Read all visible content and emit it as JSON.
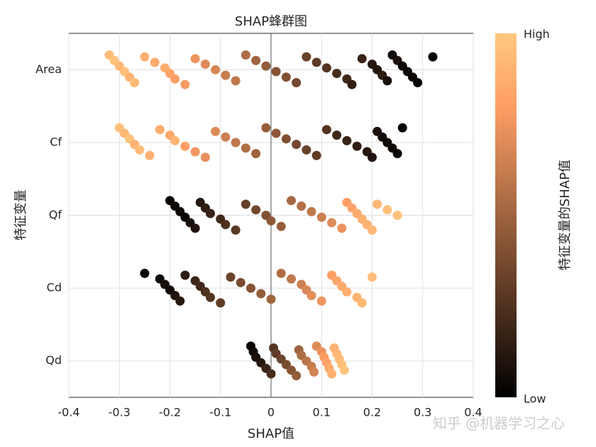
{
  "chart_data": {
    "type": "beeswarm",
    "title": "SHAP蜂群图",
    "x_label": "SHAP值",
    "y_label": "特征变量",
    "colorbar_label": "特征变量的SHAP值",
    "colorbar_high": "High",
    "colorbar_low": "Low",
    "watermark": "知乎 @机器学习之心",
    "categories": [
      "Area",
      "Cf",
      "Qf",
      "Cd",
      "Qd"
    ],
    "xlim": [
      -0.4,
      0.4
    ],
    "xticks": [
      -0.4,
      -0.3,
      -0.2,
      -0.1,
      0,
      0.1,
      0.2,
      0.3,
      0.4
    ],
    "grid": true,
    "shap_values": [
      [
        -0.32,
        -0.31,
        -0.3,
        -0.29,
        -0.28,
        -0.27,
        -0.25,
        -0.23,
        -0.21,
        -0.2,
        -0.19,
        -0.17,
        -0.15,
        -0.13,
        -0.11,
        -0.09,
        -0.07,
        -0.05,
        -0.03,
        -0.01,
        0.01,
        0.03,
        0.05,
        0.07,
        0.09,
        0.11,
        0.13,
        0.15,
        0.16,
        0.18,
        0.2,
        0.21,
        0.22,
        0.23,
        0.24,
        0.25,
        0.26,
        0.27,
        0.28,
        0.29,
        0.32
      ],
      [
        -0.3,
        -0.29,
        -0.28,
        -0.27,
        -0.26,
        -0.24,
        -0.22,
        -0.2,
        -0.19,
        -0.17,
        -0.15,
        -0.13,
        -0.11,
        -0.09,
        -0.07,
        -0.05,
        -0.03,
        -0.01,
        0.01,
        0.03,
        0.05,
        0.07,
        0.09,
        0.11,
        0.13,
        0.15,
        0.17,
        0.19,
        0.2,
        0.21,
        0.22,
        0.23,
        0.24,
        0.25,
        0.26
      ],
      [
        -0.2,
        -0.19,
        -0.18,
        -0.17,
        -0.16,
        -0.15,
        -0.14,
        -0.13,
        -0.12,
        -0.1,
        -0.09,
        -0.07,
        -0.05,
        -0.03,
        -0.01,
        0.0,
        0.02,
        0.04,
        0.06,
        0.08,
        0.1,
        0.12,
        0.14,
        0.15,
        0.16,
        0.17,
        0.18,
        0.19,
        0.2,
        0.21,
        0.23,
        0.25
      ],
      [
        -0.25,
        -0.22,
        -0.21,
        -0.2,
        -0.19,
        -0.18,
        -0.17,
        -0.15,
        -0.14,
        -0.13,
        -0.12,
        -0.1,
        -0.08,
        -0.06,
        -0.04,
        -0.02,
        0.0,
        0.02,
        0.04,
        0.06,
        0.07,
        0.08,
        0.1,
        0.12,
        0.13,
        0.14,
        0.15,
        0.17,
        0.18,
        0.2
      ],
      [
        -0.04,
        -0.035,
        -0.03,
        -0.02,
        -0.01,
        0.0,
        0.005,
        0.01,
        0.02,
        0.03,
        0.04,
        0.05,
        0.055,
        0.06,
        0.07,
        0.08,
        0.085,
        0.09,
        0.1,
        0.105,
        0.11,
        0.115,
        0.12,
        0.125,
        0.13,
        0.135,
        0.14,
        0.145
      ]
    ],
    "feature_values": [
      [
        0.95,
        0.98,
        0.92,
        0.96,
        0.9,
        0.94,
        0.88,
        0.85,
        0.87,
        0.82,
        0.8,
        0.78,
        0.75,
        0.7,
        0.68,
        0.62,
        0.6,
        0.55,
        0.5,
        0.46,
        0.42,
        0.4,
        0.36,
        0.33,
        0.3,
        0.26,
        0.22,
        0.2,
        0.15,
        0.18,
        0.12,
        0.1,
        0.14,
        0.08,
        0.06,
        0.09,
        0.05,
        0.04,
        0.03,
        0.02,
        0.01
      ],
      [
        0.96,
        0.93,
        0.98,
        0.9,
        0.94,
        0.88,
        0.86,
        0.84,
        0.9,
        0.8,
        0.76,
        0.72,
        0.7,
        0.64,
        0.6,
        0.55,
        0.5,
        0.47,
        0.44,
        0.4,
        0.36,
        0.33,
        0.3,
        0.26,
        0.2,
        0.18,
        0.15,
        0.12,
        0.1,
        0.08,
        0.06,
        0.05,
        0.04,
        0.03,
        0.02
      ],
      [
        0.02,
        0.04,
        0.05,
        0.03,
        0.08,
        0.1,
        0.12,
        0.15,
        0.18,
        0.2,
        0.24,
        0.28,
        0.32,
        0.36,
        0.4,
        0.45,
        0.48,
        0.52,
        0.56,
        0.6,
        0.64,
        0.7,
        0.74,
        0.8,
        0.82,
        0.86,
        0.88,
        0.9,
        0.93,
        0.92,
        0.95,
        0.97
      ],
      [
        0.03,
        0.05,
        0.08,
        0.06,
        0.1,
        0.12,
        0.14,
        0.18,
        0.2,
        0.24,
        0.26,
        0.3,
        0.34,
        0.38,
        0.42,
        0.46,
        0.5,
        0.55,
        0.6,
        0.64,
        0.68,
        0.72,
        0.75,
        0.8,
        0.84,
        0.86,
        0.88,
        0.9,
        0.92,
        0.95
      ],
      [
        0.02,
        0.05,
        0.08,
        0.12,
        0.18,
        0.22,
        0.26,
        0.3,
        0.34,
        0.38,
        0.42,
        0.46,
        0.5,
        0.54,
        0.58,
        0.62,
        0.66,
        0.7,
        0.74,
        0.78,
        0.82,
        0.85,
        0.88,
        0.9,
        0.92,
        0.94,
        0.96,
        0.98
      ]
    ]
  }
}
